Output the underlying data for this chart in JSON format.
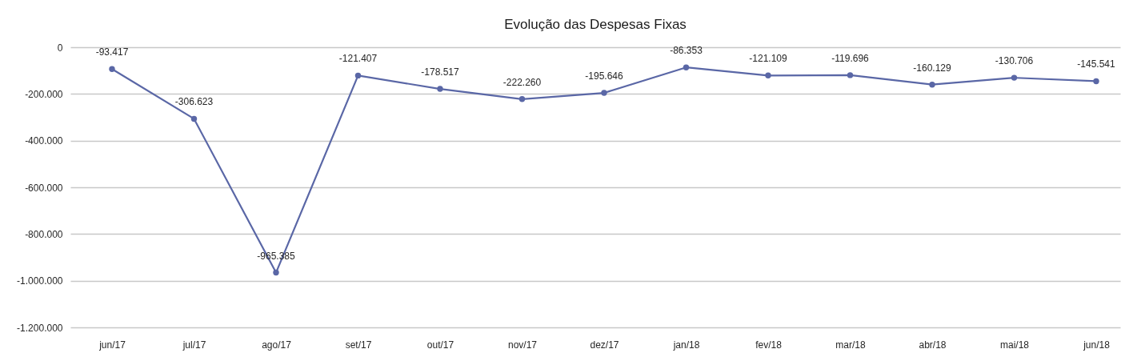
{
  "chart_data": {
    "type": "line",
    "title": "Evolução das Despesas Fixas",
    "categories": [
      "jun/17",
      "jul/17",
      "ago/17",
      "set/17",
      "out/17",
      "nov/17",
      "dez/17",
      "jan/18",
      "fev/18",
      "mar/18",
      "abr/18",
      "mai/18",
      "jun/18"
    ],
    "series": [
      {
        "color": "#5a67a6",
        "values": [
          -93417,
          -306623,
          -965385,
          -121407,
          -178517,
          -222260,
          -195646,
          -86353,
          -121109,
          -119696,
          -160129,
          -130706,
          -145541
        ],
        "value_labels": [
          "-93.417",
          "-306.623",
          "-965.385",
          "-121.407",
          "-178.517",
          "-222.260",
          "-195.646",
          "-86.353",
          "-121.109",
          "-119.696",
          "-160.129",
          "-130.706",
          "-145.541"
        ]
      }
    ],
    "ylim": [
      -1200000,
      0
    ],
    "yticks": [
      0,
      {
        "value": -200000,
        "label": "-200.000"
      },
      {
        "value": -400000,
        "label": "-400.000"
      },
      {
        "value": -600000,
        "label": "-600.000"
      },
      {
        "value": -800000,
        "label": "-800.000"
      },
      {
        "value": -1000000,
        "label": "-1.000.000"
      },
      {
        "value": -1200000,
        "label": "-1.200.000"
      }
    ],
    "grid": "y",
    "marker": "circle",
    "line_style": "solid"
  }
}
